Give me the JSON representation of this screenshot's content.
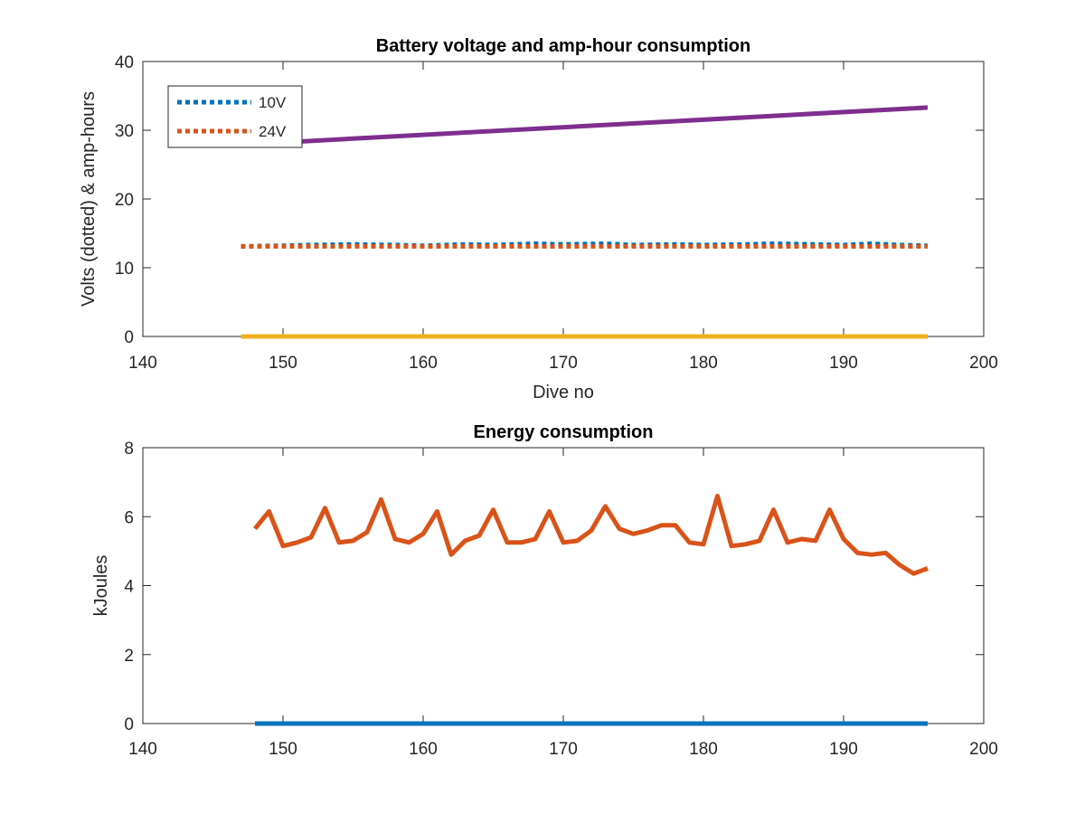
{
  "colors": {
    "blue": "#0072BD",
    "orange": "#D95319",
    "yellow": "#EDB120",
    "purple": "#7E2F8E",
    "axis": "#262626",
    "background": "#ffffff"
  },
  "chart_data": [
    {
      "type": "line",
      "title": "Battery voltage and amp-hour consumption",
      "xlabel": "Dive no",
      "ylabel": "Volts (dotted) & amp-hours",
      "xlim": [
        140,
        200
      ],
      "ylim": [
        0,
        40
      ],
      "x_ticks": [
        140,
        150,
        160,
        170,
        180,
        190,
        200
      ],
      "y_ticks": [
        0,
        10,
        20,
        30,
        40
      ],
      "grid": false,
      "legend": {
        "placement": "top-left",
        "entries": [
          "10V",
          "24V"
        ]
      },
      "series": [
        {
          "name": "10V",
          "color": "blue",
          "style": "dotted",
          "x": [
            147,
            150,
            152,
            155,
            158,
            160,
            163,
            165,
            168,
            170,
            173,
            175,
            178,
            180,
            183,
            185,
            188,
            190,
            192,
            194,
            196
          ],
          "y": [
            13.1,
            13.2,
            13.3,
            13.4,
            13.3,
            13.2,
            13.4,
            13.3,
            13.5,
            13.4,
            13.5,
            13.3,
            13.4,
            13.3,
            13.4,
            13.5,
            13.4,
            13.3,
            13.5,
            13.3,
            13.2
          ]
        },
        {
          "name": "24V",
          "color": "orange",
          "style": "dotted",
          "x": [
            147,
            196
          ],
          "y": [
            13.1,
            13.1
          ]
        },
        {
          "color": "yellow",
          "style": "solid",
          "x": [
            147,
            196
          ],
          "y": [
            0,
            0
          ]
        },
        {
          "color": "purple",
          "style": "solid",
          "x": [
            147,
            196
          ],
          "y": [
            27.9,
            33.3
          ]
        }
      ]
    },
    {
      "type": "line",
      "title": "Energy consumption",
      "xlabel": "",
      "ylabel": "kJoules",
      "xlim": [
        140,
        200
      ],
      "ylim": [
        0,
        8
      ],
      "x_ticks": [
        140,
        150,
        160,
        170,
        180,
        190,
        200
      ],
      "y_ticks": [
        0,
        2,
        4,
        6,
        8
      ],
      "grid": false,
      "series": [
        {
          "color": "blue",
          "style": "solid",
          "x": [
            148,
            196
          ],
          "y": [
            0,
            0
          ]
        },
        {
          "color": "orange",
          "style": "solid",
          "x": [
            148,
            149,
            150,
            151,
            152,
            153,
            154,
            155,
            156,
            157,
            158,
            159,
            160,
            161,
            162,
            163,
            164,
            165,
            166,
            167,
            168,
            169,
            170,
            171,
            172,
            173,
            174,
            175,
            176,
            177,
            178,
            179,
            180,
            181,
            182,
            183,
            184,
            185,
            186,
            187,
            188,
            189,
            190,
            191,
            192,
            193,
            194,
            195,
            196
          ],
          "y": [
            5.65,
            6.15,
            5.15,
            5.25,
            5.4,
            6.25,
            5.25,
            5.3,
            5.55,
            6.5,
            5.35,
            5.25,
            5.5,
            6.15,
            4.9,
            5.3,
            5.45,
            6.2,
            5.25,
            5.25,
            5.35,
            6.15,
            5.25,
            5.3,
            5.6,
            6.3,
            5.65,
            5.5,
            5.6,
            5.75,
            5.75,
            5.25,
            5.2,
            6.6,
            5.15,
            5.2,
            5.3,
            6.2,
            5.25,
            5.35,
            5.3,
            6.2,
            5.35,
            4.95,
            4.9,
            4.95,
            4.6,
            4.35,
            4.5
          ]
        }
      ]
    }
  ]
}
